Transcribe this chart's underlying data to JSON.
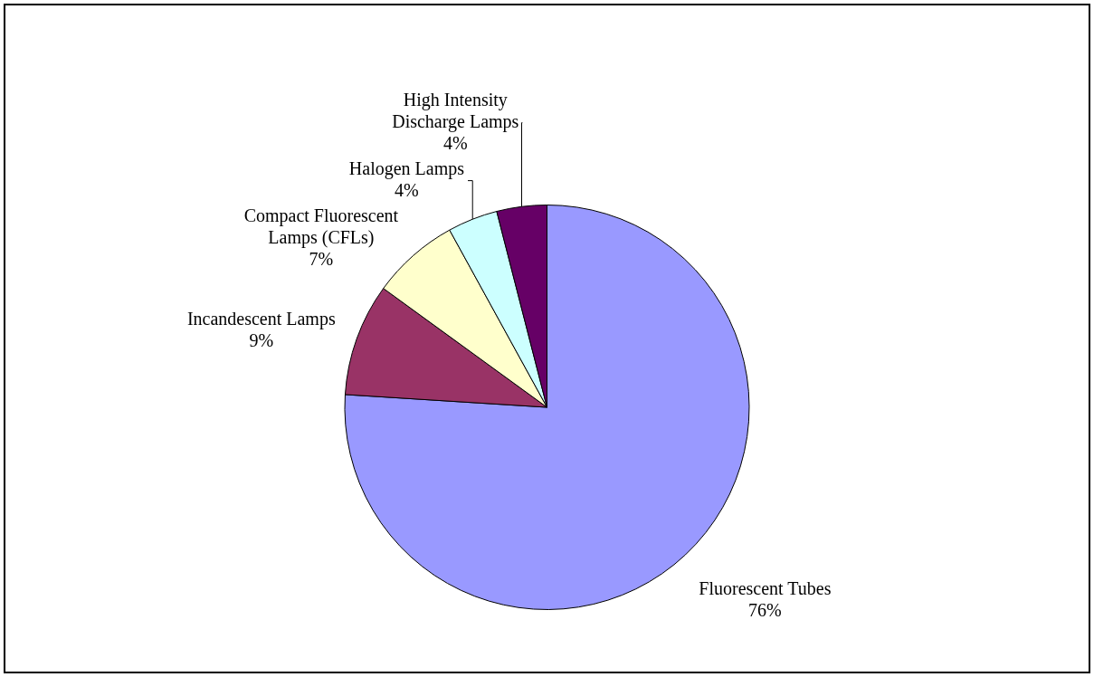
{
  "chart_data": {
    "type": "pie",
    "categories": [
      "Fluorescent Tubes",
      "Incandescent Lamps",
      "Compact Fluorescent Lamps (CFLs)",
      "Halogen Lamps",
      "High Intensity Discharge Lamps"
    ],
    "values": [
      76,
      9,
      7,
      4,
      4
    ],
    "colors": [
      "#9999ff",
      "#993366",
      "#ffffcc",
      "#ccffff",
      "#660066"
    ],
    "value_labels": [
      "76%",
      "9%",
      "7%",
      "4%",
      "4%"
    ],
    "legend": false
  }
}
